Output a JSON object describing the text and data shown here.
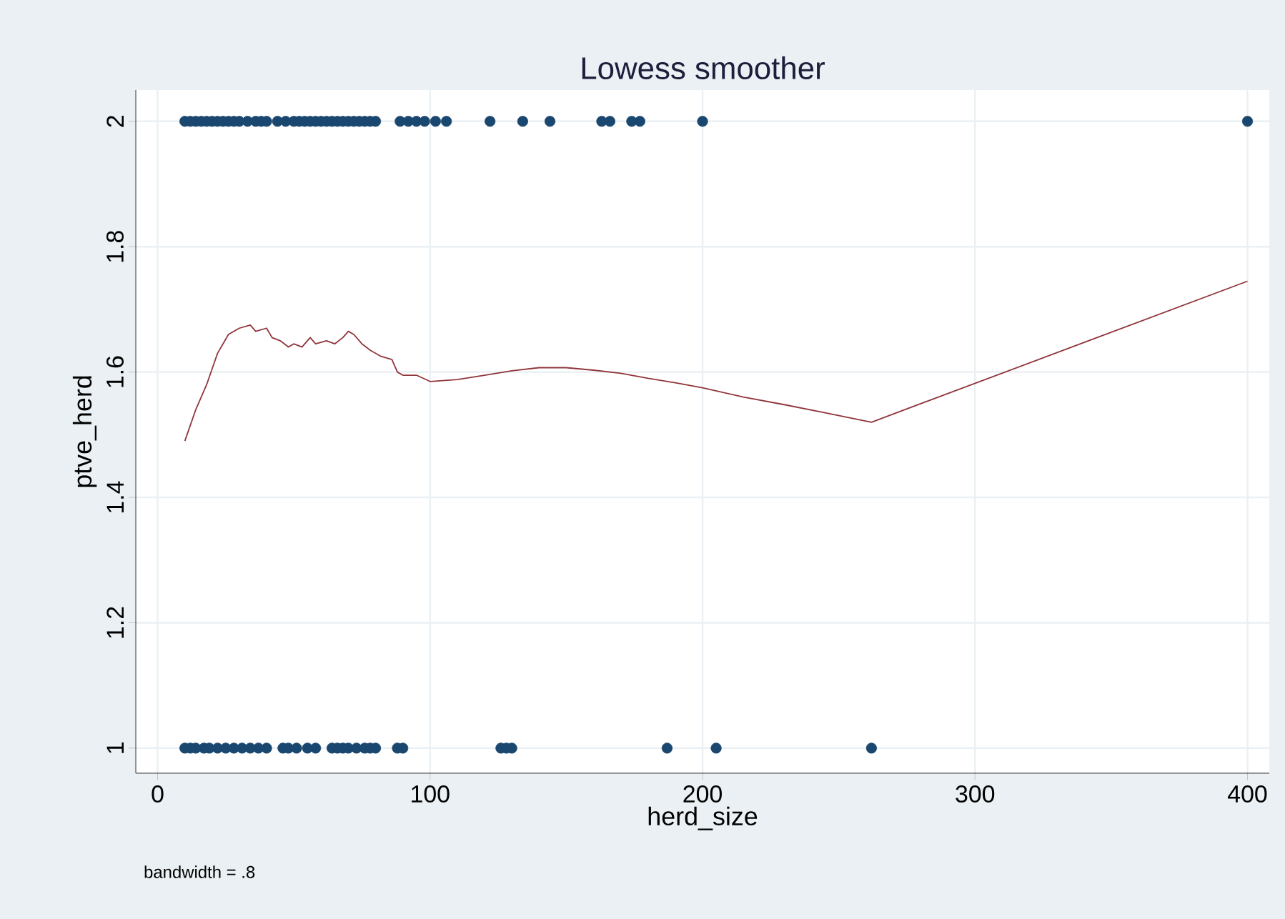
{
  "chart_data": {
    "type": "scatter",
    "title": "Lowess smoother",
    "xlabel": "herd_size",
    "ylabel": "ptve_herd",
    "annotations": [
      "bandwidth = .8"
    ],
    "xlim": [
      -8,
      408
    ],
    "ylim": [
      0.96,
      2.05
    ],
    "xticks": [
      0,
      100,
      200,
      300,
      400
    ],
    "yticks": [
      1,
      1.2,
      1.4,
      1.6,
      1.8,
      2
    ],
    "grid": true,
    "series": [
      {
        "marker": "circle",
        "color": "#1a476f",
        "x": [
          10,
          12,
          14,
          16,
          18,
          20,
          22,
          24,
          26,
          28,
          30,
          33,
          36,
          38,
          40,
          44,
          47,
          50,
          52,
          54,
          56,
          58,
          60,
          62,
          64,
          66,
          68,
          70,
          72,
          74,
          76,
          78,
          80,
          89,
          92,
          95,
          98,
          102,
          106,
          122,
          134,
          144,
          163,
          166,
          174,
          177,
          200,
          400
        ],
        "values": [
          2,
          2,
          2,
          2,
          2,
          2,
          2,
          2,
          2,
          2,
          2,
          2,
          2,
          2,
          2,
          2,
          2,
          2,
          2,
          2,
          2,
          2,
          2,
          2,
          2,
          2,
          2,
          2,
          2,
          2,
          2,
          2,
          2,
          2,
          2,
          2,
          2,
          2,
          2,
          2,
          2,
          2,
          2,
          2,
          2,
          2,
          2,
          2
        ]
      },
      {
        "marker": "circle",
        "color": "#1a476f",
        "x": [
          10,
          12,
          14,
          17,
          19,
          22,
          25,
          28,
          31,
          34,
          37,
          40,
          46,
          48,
          51,
          55,
          58,
          64,
          66,
          68,
          70,
          73,
          76,
          78,
          80,
          88,
          90,
          126,
          128,
          130,
          187,
          205,
          262
        ],
        "values": [
          1,
          1,
          1,
          1,
          1,
          1,
          1,
          1,
          1,
          1,
          1,
          1,
          1,
          1,
          1,
          1,
          1,
          1,
          1,
          1,
          1,
          1,
          1,
          1,
          1,
          1,
          1,
          1,
          1,
          1,
          1,
          1,
          1
        ]
      },
      {
        "type": "line",
        "marker": "none",
        "color": "#90353b",
        "x": [
          10,
          14,
          18,
          22,
          26,
          30,
          34,
          36,
          40,
          42,
          45,
          48,
          50,
          53,
          56,
          58,
          62,
          65,
          68,
          70,
          72,
          75,
          78,
          82,
          86,
          88,
          90,
          95,
          100,
          110,
          120,
          130,
          140,
          150,
          160,
          170,
          180,
          190,
          200,
          215,
          230,
          245,
          262,
          400
        ],
        "values": [
          1.49,
          1.54,
          1.58,
          1.63,
          1.66,
          1.67,
          1.675,
          1.665,
          1.67,
          1.655,
          1.65,
          1.64,
          1.645,
          1.64,
          1.655,
          1.645,
          1.65,
          1.645,
          1.655,
          1.665,
          1.66,
          1.645,
          1.635,
          1.625,
          1.62,
          1.6,
          1.595,
          1.595,
          1.585,
          1.588,
          1.595,
          1.602,
          1.607,
          1.607,
          1.603,
          1.598,
          1.59,
          1.583,
          1.575,
          1.56,
          1.548,
          1.535,
          1.52,
          1.745
        ]
      }
    ]
  }
}
